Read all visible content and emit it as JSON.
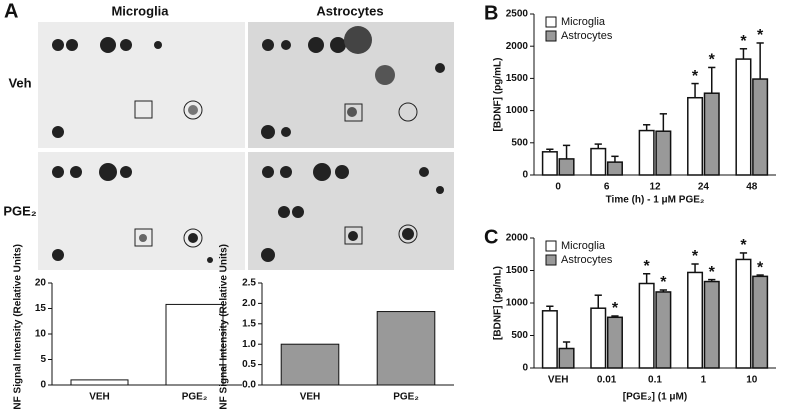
{
  "figure": {
    "panels": [
      "A",
      "B",
      "C"
    ],
    "blot_columns": [
      "Microglia",
      "Astrocytes"
    ],
    "blot_rows": [
      "Veh",
      "PGE₂"
    ]
  },
  "chart_data": [
    {
      "type": "bar",
      "ylabel": "BDNF Signal Intensity (Relative Units)",
      "categories": [
        "VEH",
        "PGE₂"
      ],
      "values": [
        1,
        15.8
      ],
      "color": "#ffffff",
      "ylim": [
        0,
        20
      ],
      "yticks": [
        0,
        5,
        10,
        15,
        20
      ]
    },
    {
      "type": "bar",
      "ylabel": "BDNF Signal Intensity (Relative Units)",
      "categories": [
        "VEH",
        "PGE₂"
      ],
      "values": [
        1,
        1.8
      ],
      "color": "#999999",
      "ylim": [
        0,
        2.5
      ],
      "yticks": [
        {
          "value": 0,
          "label": "0.0"
        },
        {
          "value": 0.5,
          "label": "0.5"
        },
        {
          "value": 1,
          "label": "1.0"
        },
        {
          "value": 1.5,
          "label": "1.5"
        },
        {
          "value": 2,
          "label": "2.0"
        },
        {
          "value": 2.5,
          "label": "2.5"
        }
      ]
    },
    {
      "type": "grouped-bar",
      "ylabel": "[BDNF] (pg/mL)",
      "xlabel": "Time (h) - 1 μM PGE₂",
      "categories": [
        "0",
        "6",
        "12",
        "24",
        "48"
      ],
      "series": [
        {
          "name": "Microglia",
          "color": "#ffffff",
          "values": [
            360,
            410,
            690,
            1200,
            1800
          ],
          "errors": [
            40,
            70,
            90,
            220,
            160
          ],
          "significance": [
            null,
            null,
            null,
            "*",
            "*"
          ]
        },
        {
          "name": "Astrocytes",
          "color": "#999999",
          "values": [
            250,
            200,
            680,
            1270,
            1490
          ],
          "errors": [
            210,
            90,
            270,
            400,
            560
          ],
          "significance": [
            null,
            null,
            null,
            "*",
            "*"
          ]
        }
      ],
      "ylim": [
        0,
        2500
      ],
      "yticks": [
        0,
        500,
        1000,
        1500,
        2000,
        2500
      ]
    },
    {
      "type": "grouped-bar",
      "ylabel": "[BDNF] (pg/mL)",
      "xlabel": "[PGE₂] (1 μM)",
      "categories": [
        "VEH",
        "0.01",
        "0.1",
        "1",
        "10"
      ],
      "series": [
        {
          "name": "Microglia",
          "color": "#ffffff",
          "values": [
            880,
            920,
            1300,
            1470,
            1670
          ],
          "errors": [
            70,
            200,
            150,
            130,
            100
          ],
          "significance": [
            null,
            null,
            "*",
            "*",
            "*"
          ]
        },
        {
          "name": "Astrocytes",
          "color": "#999999",
          "values": [
            300,
            780,
            1170,
            1330,
            1410
          ],
          "errors": [
            100,
            20,
            30,
            30,
            20
          ],
          "significance": [
            null,
            "*",
            "*",
            "*",
            "*"
          ]
        }
      ],
      "ylim": [
        0,
        2000
      ],
      "yticks": [
        0,
        500,
        1000,
        1500,
        2000
      ]
    }
  ]
}
